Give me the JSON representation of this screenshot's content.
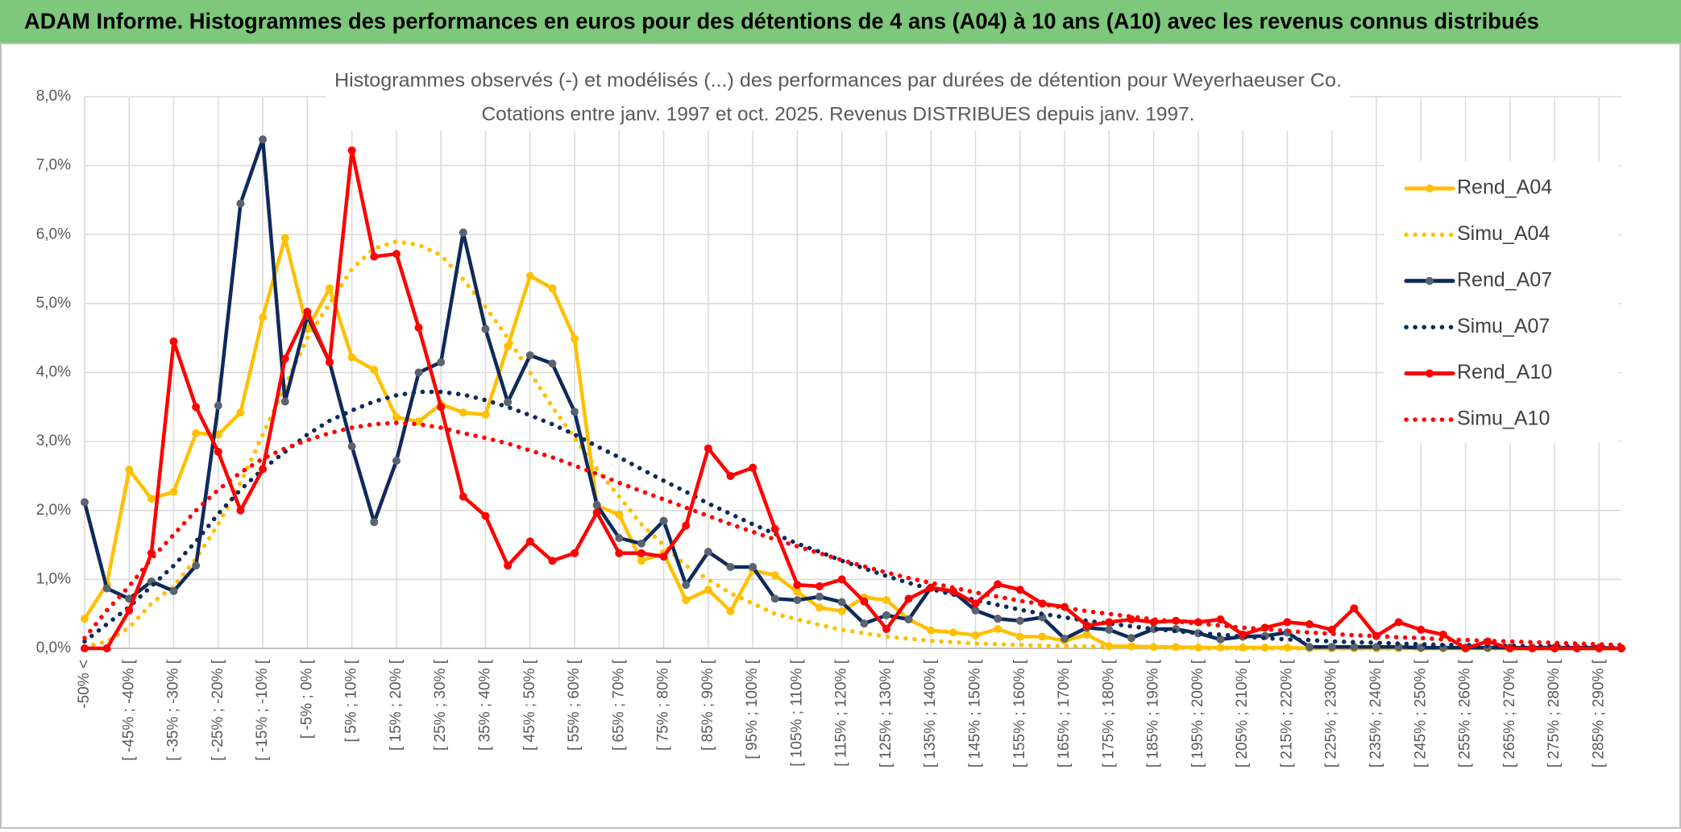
{
  "chart_data": {
    "type": "line",
    "title": "ADAM Informe. Histogrammes des performances en euros pour des détentions de 4 ans (A04) à 10 ans (A10) avec les revenus connus distribués",
    "subtitle": [
      "Histogrammes observés (-) et modélisés (...) des performances par durées de détention pour Weyerhaeuser Co.",
      "Cotations entre janv. 1997 et oct. 2025. Revenus DISTRIBUES depuis janv. 1997."
    ],
    "categories": [
      "-50% <",
      null,
      "[ -45% ; -40% [",
      null,
      "[ -35% ; -30% [",
      null,
      "[ -25% ; -20% [",
      null,
      "[ -15% ; -10% [",
      null,
      "[ -5% ; 0% [",
      null,
      "[ 5% ; 10% [",
      null,
      "[ 15% ; 20% [",
      null,
      "[ 25% ; 30% [",
      null,
      "[ 35% ; 40% [",
      null,
      "[ 45% ; 50% [",
      null,
      "[ 55% ; 60% [",
      null,
      "[ 65% ; 70% [",
      null,
      "[ 75% ; 80% [",
      null,
      "[ 85% ; 90% [",
      null,
      "[ 95% ; 100% [",
      null,
      "[ 105% ; 110% [",
      null,
      "[ 115% ; 120% [",
      null,
      "[ 125% ; 130% [",
      null,
      "[ 135% ; 140% [",
      null,
      "[ 145% ; 150% [",
      null,
      "[ 155% ; 160% [",
      null,
      "[ 165% ; 170% [",
      null,
      "[ 175% ; 180% [",
      null,
      "[ 185% ; 190% [",
      null,
      "[ 195% ; 200% [",
      null,
      "[ 205% ; 210% [",
      null,
      "[ 215% ; 220% [",
      null,
      "[ 225% ; 230% [",
      null,
      "[ 235% ; 240% [",
      null,
      "[ 245% ; 250% [",
      null,
      "[ 255% ; 260% [",
      null,
      "[ 265% ; 270% [",
      null,
      "[ 275% ; 280% [",
      null,
      "[ 285% ; 290% [",
      null
    ],
    "series": [
      {
        "name": "Rend_A04",
        "color": "#ffc000",
        "line_style": "solid",
        "marker": true,
        "marker_color": "#ffc000",
        "values": [
          0.43,
          0.93,
          2.59,
          2.17,
          2.27,
          3.12,
          3.1,
          3.42,
          4.8,
          5.95,
          4.63,
          5.22,
          4.22,
          4.04,
          3.35,
          3.29,
          3.54,
          3.42,
          3.39,
          4.38,
          5.4,
          5.22,
          4.49,
          2.07,
          1.94,
          1.27,
          1.38,
          0.7,
          0.85,
          0.54,
          1.13,
          1.06,
          0.82,
          0.59,
          0.54,
          0.74,
          0.7,
          0.42,
          0.26,
          0.23,
          0.19,
          0.28,
          0.17,
          0.17,
          0.11,
          0.2,
          0.03,
          0.03,
          0.02,
          0.02,
          0.01,
          0.01,
          0.01,
          0.01,
          0.01,
          0,
          0,
          0,
          0,
          0,
          0,
          0,
          0,
          0,
          0,
          0,
          0,
          0,
          0,
          0
        ]
      },
      {
        "name": "Simu_A04",
        "color": "#ffc000",
        "line_style": "dotted",
        "marker": false,
        "values": [
          0.02,
          0.1,
          0.3,
          0.65,
          0.9,
          1.3,
          1.8,
          2.4,
          3.1,
          3.8,
          4.5,
          5.0,
          5.5,
          5.8,
          5.9,
          5.85,
          5.7,
          5.35,
          4.95,
          4.5,
          4.0,
          3.5,
          3.05,
          2.6,
          2.2,
          1.8,
          1.5,
          1.2,
          1.0,
          0.8,
          0.65,
          0.5,
          0.42,
          0.34,
          0.27,
          0.22,
          0.17,
          0.14,
          0.11,
          0.09,
          0.07,
          0.06,
          0.05,
          0.04,
          0.03,
          0.03,
          0.02,
          0.02,
          0.01,
          0.01,
          0,
          0,
          0,
          0,
          0,
          0,
          0,
          0,
          0,
          0,
          0,
          0,
          0,
          0,
          0,
          0,
          0,
          0,
          0,
          0
        ]
      },
      {
        "name": "Rend_A07",
        "color": "#0e2a5c",
        "line_style": "solid",
        "marker": true,
        "marker_color": "#5b6370",
        "values": [
          2.12,
          0.87,
          0.72,
          0.97,
          0.83,
          1.2,
          3.52,
          6.45,
          7.38,
          3.58,
          4.82,
          4.15,
          2.93,
          1.83,
          2.72,
          4.0,
          4.15,
          6.03,
          4.63,
          3.57,
          4.25,
          4.13,
          3.43,
          2.08,
          1.6,
          1.52,
          1.85,
          0.92,
          1.4,
          1.18,
          1.18,
          0.72,
          0.7,
          0.75,
          0.67,
          0.36,
          0.48,
          0.42,
          0.88,
          0.82,
          0.55,
          0.43,
          0.4,
          0.45,
          0.14,
          0.3,
          0.27,
          0.15,
          0.28,
          0.28,
          0.22,
          0.13,
          0.17,
          0.18,
          0.23,
          0.02,
          0.02,
          0.02,
          0.02,
          0.02,
          0.01,
          0.01,
          0.01,
          0.01,
          0.01,
          0.01,
          0.01,
          0.01,
          0.01,
          0
        ]
      },
      {
        "name": "Simu_A07",
        "color": "#0e2a5c",
        "line_style": "dotted",
        "marker": false,
        "values": [
          0.1,
          0.35,
          0.6,
          0.9,
          1.2,
          1.55,
          1.95,
          2.3,
          2.6,
          2.85,
          3.1,
          3.3,
          3.45,
          3.58,
          3.67,
          3.72,
          3.72,
          3.68,
          3.6,
          3.5,
          3.38,
          3.25,
          3.1,
          2.93,
          2.77,
          2.6,
          2.43,
          2.27,
          2.1,
          1.95,
          1.8,
          1.66,
          1.52,
          1.4,
          1.27,
          1.16,
          1.05,
          0.95,
          0.86,
          0.78,
          0.7,
          0.63,
          0.56,
          0.5,
          0.45,
          0.4,
          0.36,
          0.32,
          0.28,
          0.25,
          0.22,
          0.2,
          0.17,
          0.15,
          0.13,
          0.12,
          0.1,
          0.09,
          0.08,
          0.07,
          0.06,
          0.05,
          0.05,
          0.04,
          0.04,
          0.03,
          0.03,
          0.03,
          0.02,
          0.02
        ]
      },
      {
        "name": "Rend_A10",
        "color": "#ff0000",
        "line_style": "solid",
        "marker": true,
        "marker_color": "#ff0000",
        "values": [
          0,
          0,
          0.55,
          1.38,
          4.45,
          3.5,
          2.85,
          2.0,
          2.6,
          4.2,
          4.88,
          4.15,
          7.22,
          5.68,
          5.72,
          4.65,
          3.5,
          2.2,
          1.92,
          1.2,
          1.55,
          1.27,
          1.38,
          1.97,
          1.38,
          1.38,
          1.33,
          1.78,
          2.9,
          2.5,
          2.62,
          1.73,
          0.92,
          0.9,
          1.0,
          0.68,
          0.28,
          0.72,
          0.88,
          0.83,
          0.65,
          0.93,
          0.85,
          0.65,
          0.6,
          0.33,
          0.38,
          0.42,
          0.38,
          0.4,
          0.38,
          0.42,
          0.2,
          0.3,
          0.38,
          0.35,
          0.27,
          0.58,
          0.18,
          0.38,
          0.27,
          0.2,
          0,
          0.1,
          0,
          0,
          0,
          0,
          0,
          0
        ]
      },
      {
        "name": "Simu_A10",
        "color": "#ff0000",
        "line_style": "dotted",
        "marker": false,
        "values": [
          0.15,
          0.55,
          0.9,
          1.3,
          1.65,
          2.0,
          2.3,
          2.55,
          2.75,
          2.9,
          3.02,
          3.12,
          3.2,
          3.25,
          3.27,
          3.25,
          3.2,
          3.12,
          3.05,
          2.97,
          2.87,
          2.77,
          2.65,
          2.53,
          2.4,
          2.28,
          2.16,
          2.04,
          1.92,
          1.8,
          1.69,
          1.58,
          1.48,
          1.38,
          1.28,
          1.19,
          1.1,
          1.02,
          0.95,
          0.88,
          0.81,
          0.75,
          0.69,
          0.64,
          0.59,
          0.54,
          0.5,
          0.46,
          0.42,
          0.39,
          0.36,
          0.33,
          0.3,
          0.28,
          0.25,
          0.23,
          0.21,
          0.19,
          0.18,
          0.16,
          0.15,
          0.13,
          0.12,
          0.11,
          0.1,
          0.09,
          0.08,
          0.07,
          0.06,
          0.05
        ]
      }
    ],
    "ylim": [
      0,
      8
    ],
    "yticks": [
      {
        "value": 0,
        "label": "0,0%"
      },
      {
        "value": 1,
        "label": "1,0%"
      },
      {
        "value": 2,
        "label": "2,0%"
      },
      {
        "value": 3,
        "label": "3,0%"
      },
      {
        "value": 4,
        "label": "4,0%"
      },
      {
        "value": 5,
        "label": "5,0%"
      },
      {
        "value": 6,
        "label": "6,0%"
      },
      {
        "value": 7,
        "label": "7,0%"
      },
      {
        "value": 8,
        "label": "8,0%"
      }
    ],
    "grid": true,
    "legend": "right"
  }
}
